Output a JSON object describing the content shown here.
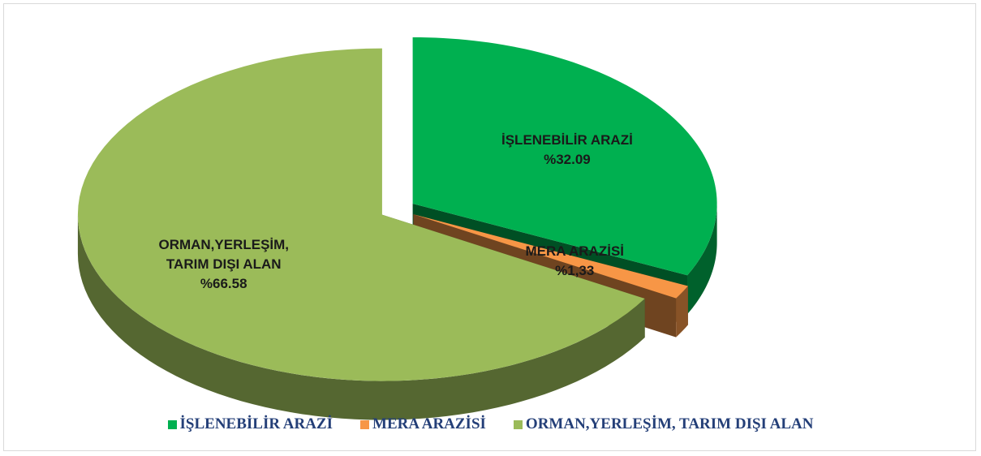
{
  "chart_data": {
    "type": "pie3d",
    "categories": [
      "İŞLENEBİLİR ARAZİ",
      "MERA ARAZİSİ",
      "ORMAN,YERLEŞİM, TARIM DIŞI ALAN"
    ],
    "values": [
      32.09,
      1.33,
      66.58
    ],
    "value_labels": [
      "%32.09",
      "%1,33",
      "%66.58"
    ],
    "colors": [
      "#00b050",
      "#f79646",
      "#9bbb59"
    ],
    "legend": "bottom"
  }
}
